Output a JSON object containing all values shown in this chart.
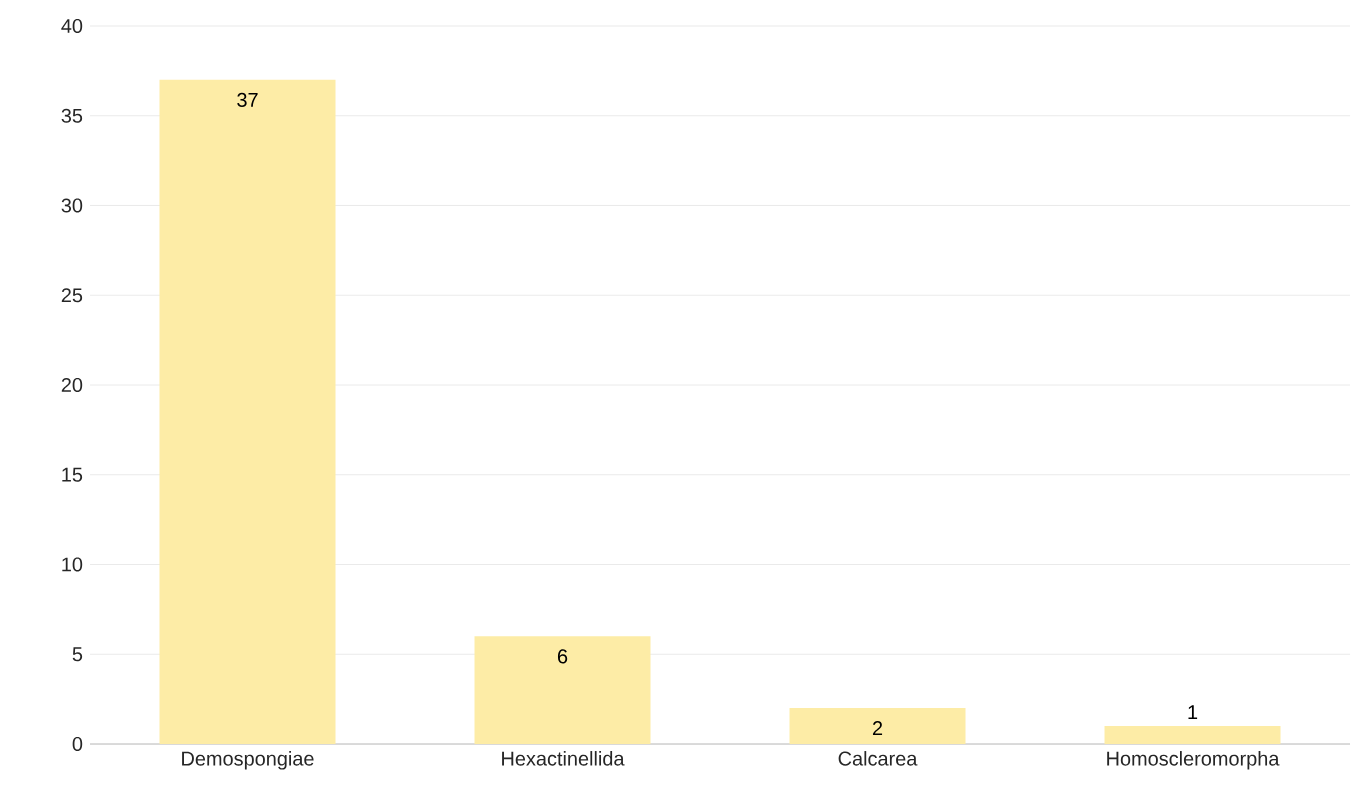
{
  "chart_data": {
    "type": "bar",
    "categories": [
      "Demospongiae",
      "Hexactinellida",
      "Calcarea",
      "Homoscleromorpha"
    ],
    "values": [
      37,
      6,
      2,
      1
    ],
    "color": "#fdeca6",
    "ylim": [
      0,
      40
    ],
    "yticks": [
      0,
      5,
      10,
      15,
      20,
      25,
      30,
      35,
      40
    ],
    "grid": "y",
    "data_labels": true
  }
}
